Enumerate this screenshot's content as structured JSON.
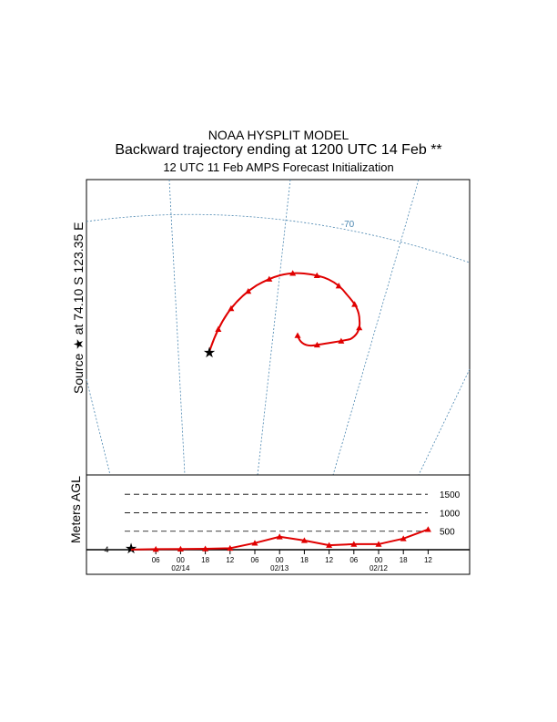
{
  "header": {
    "line1": "NOAA HYSPLIT MODEL",
    "line2": "Backward trajectory ending at 1200 UTC 14 Feb **",
    "line3": "12 UTC 11 Feb    AMPS  Forecast Initialization"
  },
  "side_labels": {
    "source": "Source ★ at   74.10 S  123.35 E",
    "meters": "Meters AGL"
  },
  "colors": {
    "trajectory": "#e00000",
    "grid": "#4a86b0",
    "frame": "#000000"
  },
  "chart_data": [
    {
      "type": "line",
      "panel": "map",
      "map_labels": [
        "-70"
      ],
      "source": {
        "lat": -74.1,
        "lon": 123.35,
        "marker": "star"
      },
      "grid": true
    },
    {
      "type": "line",
      "panel": "vertical-profile",
      "ylabel": "Meters AGL",
      "ytick_labels": [
        "1500",
        "1000",
        "500"
      ],
      "yticks": [
        1500,
        1000,
        500
      ],
      "ylim": [
        0,
        1800
      ],
      "x_tick_labels": [
        "06",
        "00",
        "18",
        "12",
        "06",
        "00",
        "18",
        "12",
        "06",
        "00",
        "18",
        "12"
      ],
      "date_labels": [
        "02/14",
        "02/13",
        "02/12"
      ],
      "start_label": "4",
      "series": [
        {
          "x_hours_back": [
            0,
            6,
            12,
            18,
            24,
            30,
            36,
            42,
            48,
            54,
            60,
            66,
            72
          ],
          "y": [
            4,
            15,
            20,
            25,
            40,
            180,
            350,
            250,
            120,
            150,
            150,
            300,
            550
          ]
        }
      ]
    }
  ]
}
